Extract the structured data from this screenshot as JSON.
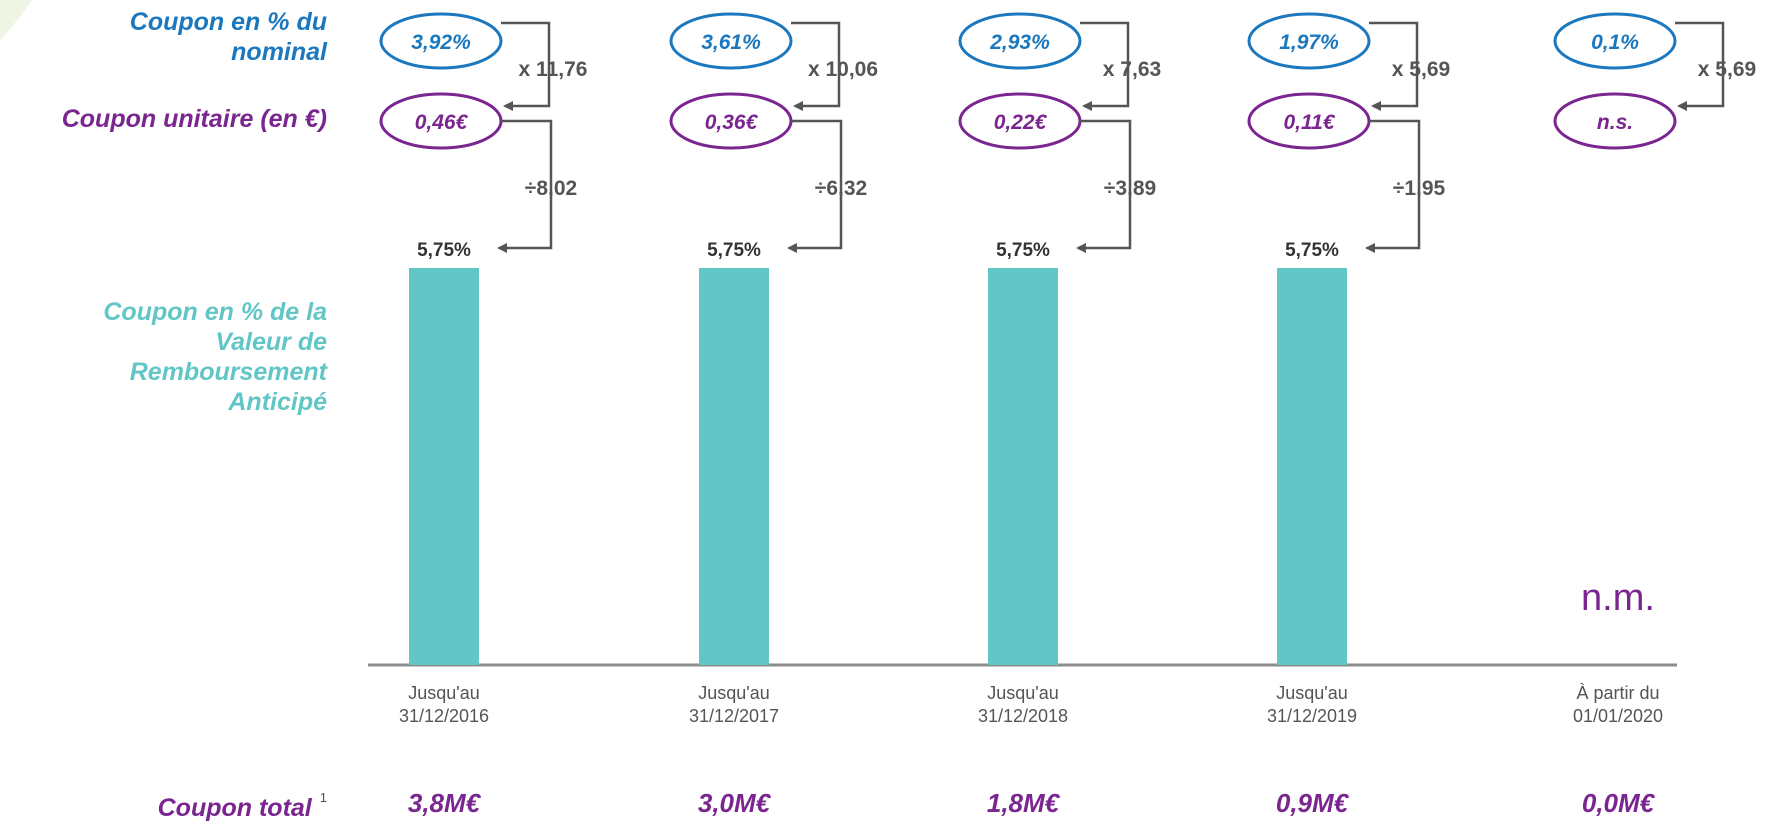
{
  "row_labels": {
    "coupon_nominal": "Coupon en % du nominal",
    "coupon_unitaire": "Coupon unitaire (en €)",
    "coupon_valeur": "Coupon en % de la Valeur de Remboursement Anticipé",
    "coupon_total": "Coupon total",
    "coupon_total_note": "1"
  },
  "colors": {
    "blue": "#1b78be",
    "purple": "#7a2590",
    "teal": "#62c6c6",
    "grey": "#555555"
  },
  "chart_data": {
    "type": "bar",
    "categories": [
      "Jusqu'au 31/12/2016",
      "Jusqu'au 31/12/2017",
      "Jusqu'au 31/12/2018",
      "Jusqu'au 31/12/2019",
      "À partir du 01/01/2020"
    ],
    "series": [
      {
        "values": [
          5.75,
          5.75,
          5.75,
          5.75,
          null
        ]
      }
    ],
    "bar_labels": [
      "5,75%",
      "5,75%",
      "5,75%",
      "5,75%",
      "n.m."
    ],
    "coupon_nominal": [
      "3,92%",
      "3,61%",
      "2,93%",
      "1,97%",
      "0,1%"
    ],
    "multipliers": [
      "x 11,76",
      "x 10,06",
      "x 7,63",
      "x 5,69",
      "x 5,69"
    ],
    "coupon_unitaire": [
      "0,46€",
      "0,36€",
      "0,22€",
      "0,11€",
      "n.s."
    ],
    "divisors": [
      "÷8,02",
      "÷6,32",
      "÷3,89",
      "÷1,95",
      null
    ],
    "coupon_total": [
      "3,8M€",
      "3,0M€",
      "1,8M€",
      "0,9M€",
      "0,0M€"
    ]
  }
}
